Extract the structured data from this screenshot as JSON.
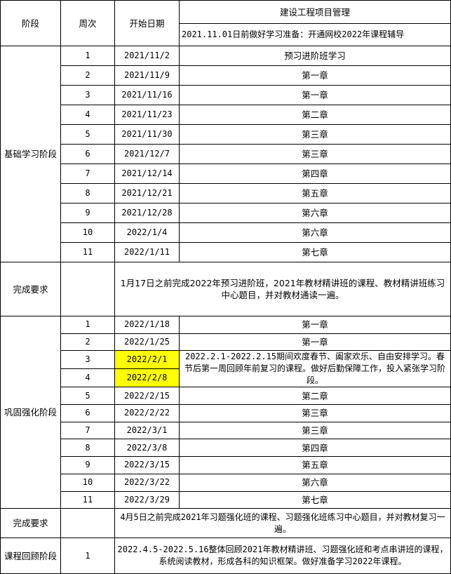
{
  "header": {
    "col_stage": "阶段",
    "col_week": "周次",
    "col_date": "开始日期",
    "col_subject": "建设工程项目管理",
    "prep_note": "2021.11.01日前做好学习准备：开通网校2022年课程辅导"
  },
  "basic": {
    "stage": "基础学习阶段",
    "rows": [
      {
        "week": "1",
        "date": "2021/11/2",
        "content": "预习进阶班学习"
      },
      {
        "week": "2",
        "date": "2021/11/9",
        "content": "第一章"
      },
      {
        "week": "3",
        "date": "2021/11/16",
        "content": "第一章"
      },
      {
        "week": "4",
        "date": "2021/11/23",
        "content": "第二章"
      },
      {
        "week": "5",
        "date": "2021/11/30",
        "content": "第三章"
      },
      {
        "week": "6",
        "date": "2021/12/7",
        "content": "第三章"
      },
      {
        "week": "7",
        "date": "2021/12/14",
        "content": "第四章"
      },
      {
        "week": "8",
        "date": "2021/12/21",
        "content": "第五章"
      },
      {
        "week": "9",
        "date": "2021/12/28",
        "content": "第六章"
      },
      {
        "week": "10",
        "date": "2022/1/4",
        "content": "第六章"
      },
      {
        "week": "11",
        "date": "2022/1/11",
        "content": "第七章"
      }
    ],
    "req_label": "完成要求",
    "req_text": "1月17日之前完成2022年预习进阶班，2021年教材精讲班的课程、教材精讲班练习中心题目，并对教材通读一遍。"
  },
  "consolidate": {
    "stage": "巩固强化阶段",
    "rows": [
      {
        "week": "1",
        "date": "2022/1/18",
        "content": "第一章"
      },
      {
        "week": "2",
        "date": "2022/1/25",
        "content": "第一章"
      },
      {
        "week": "3",
        "date": "2022/2/1",
        "content": "2022.2.1-2022.2.15期间欢度春节、阖家欢乐、自由安排学习。春节后第一周回顾年前复习的课程。做好后勤保障工作，投入紧张学习阶段。"
      },
      {
        "week": "4",
        "date": "2022/2/8",
        "content": ""
      },
      {
        "week": "5",
        "date": "2022/2/15",
        "content": "第二章"
      },
      {
        "week": "6",
        "date": "2022/2/22",
        "content": "第三章"
      },
      {
        "week": "7",
        "date": "2022/3/1",
        "content": "第三章"
      },
      {
        "week": "8",
        "date": "2022/3/8",
        "content": "第四章"
      },
      {
        "week": "9",
        "date": "2022/3/15",
        "content": "第五章"
      },
      {
        "week": "10",
        "date": "2022/3/22",
        "content": "第六章"
      },
      {
        "week": "11",
        "date": "2022/3/29",
        "content": "第七章"
      }
    ],
    "highlight_color": "#ffff00",
    "req_label": "完成要求",
    "req_text": "4月5日之前完成2021年习题强化班的课程、习题强化班练习中心题目，并对教材复习一遍。"
  },
  "review": {
    "stage": "课程回顾阶段",
    "week": "1",
    "text": "2022.4.5-2022.5.16整体回顾2021年教材精讲班、习题强化班和考点串讲班的课程，系统阅读教材，形成各科的知识框架。做好准备学习2022年课程。"
  }
}
